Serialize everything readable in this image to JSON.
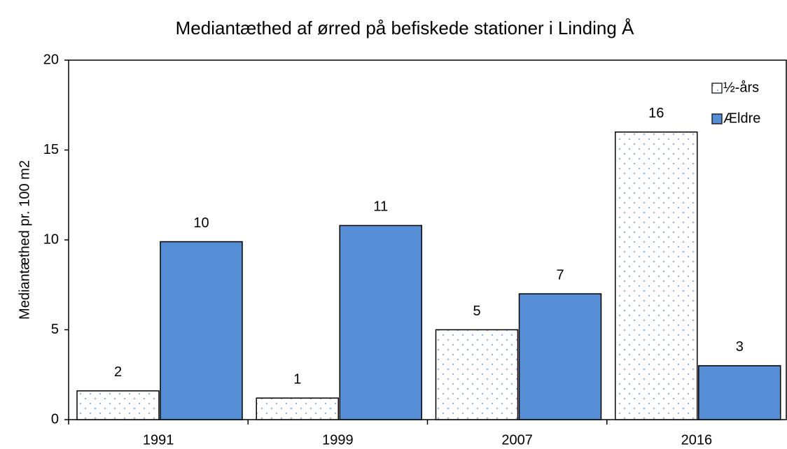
{
  "chart_data": {
    "type": "bar",
    "title": "Mediantæthed af ørred på befiskede stationer i Linding Å",
    "y_label": "Mediantæthed pr. 100 m2",
    "categories": [
      "1991",
      "1999",
      "2007",
      "2016"
    ],
    "series": [
      {
        "name": "½-års",
        "color": "#8fb4e3",
        "pattern": "dots",
        "values": [
          1.6,
          1.2,
          5.0,
          16.0
        ],
        "value_labels": [
          "2",
          "1",
          "5",
          "16"
        ]
      },
      {
        "name": "Ældre",
        "color": "#558ed5",
        "values": [
          9.9,
          10.8,
          7.0,
          3.0
        ],
        "value_labels": [
          "10",
          "11",
          "7",
          "3"
        ]
      }
    ],
    "ylim": [
      0,
      20
    ],
    "yticks": [
      0,
      5,
      10,
      15,
      20
    ],
    "grid": false,
    "legend": "upper right"
  }
}
